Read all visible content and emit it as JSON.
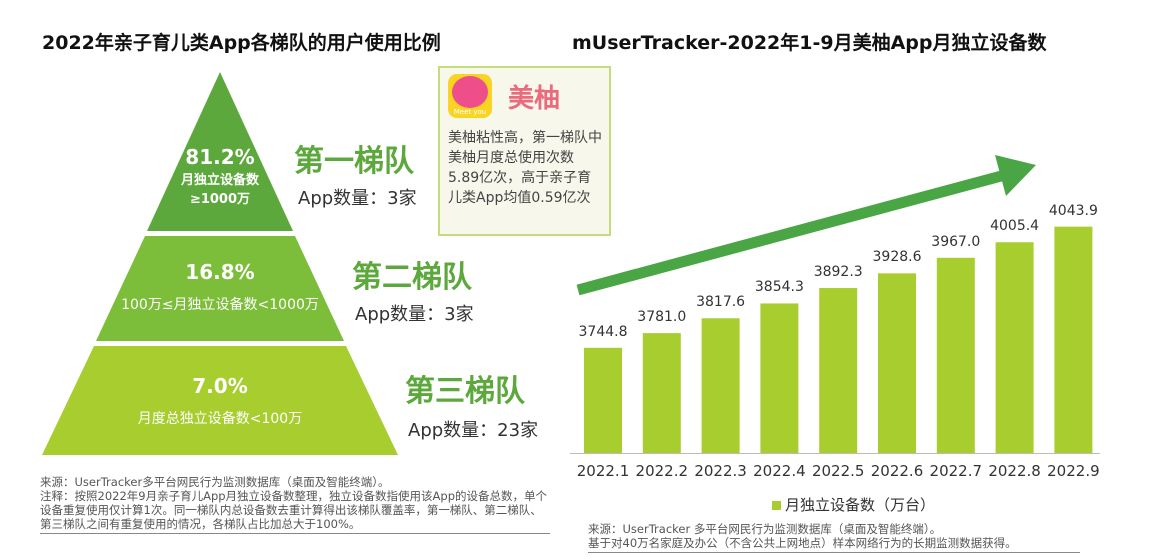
{
  "left": {
    "title": "2022年亲子育儿类App各梯队的用户使用比例",
    "tiers": [
      {
        "name": "第一梯队",
        "pct": "81.2%",
        "desc": "月独立设备数",
        "desc2": "≥1000万",
        "count": "App数量：3家",
        "color": "#5da83c"
      },
      {
        "name": "第二梯队",
        "pct": "16.8%",
        "desc": "100万≤月独立设备数<1000万",
        "count": "App数量：3家",
        "color": "#7cbd3a"
      },
      {
        "name": "第三梯队",
        "pct": "7.0%",
        "desc": "月度总独立设备数<100万",
        "count": "App数量：23家",
        "color": "#a8cd2f"
      }
    ],
    "callout": {
      "app_name": "美柚",
      "logo_text": "Meet you",
      "text": "美柚粘性高，第一梯队中美柚月度总使用次数5.89亿次，高于亲子育儿类App均值0.59亿次"
    },
    "source": [
      "来源：UserTracker多平台网民行为监测数据库（桌面及智能终端）。",
      "注释：按照2022年9月亲子育儿App月独立设备数整理，独立设备数指使用该App的设备总数，单个设备重复使用仅计算1次。同一梯队内总设备数去重计算得出该梯队覆盖率，第一梯队、第二梯队、第三梯队之间有重复使用的情况，各梯队占比加总大于100%。"
    ]
  },
  "chart_data": {
    "type": "bar",
    "title": "mUserTracker-2022年1-9月美柚App月独立设备数",
    "categories": [
      "2022.1",
      "2022.2",
      "2022.3",
      "2022.4",
      "2022.5",
      "2022.6",
      "2022.7",
      "2022.8",
      "2022.9"
    ],
    "series": [
      {
        "name": "月独立设备数（万台）",
        "values": [
          3744.8,
          3781.0,
          3817.6,
          3854.3,
          3892.3,
          3928.6,
          3967.0,
          4005.4,
          4043.9
        ],
        "labels": [
          "3744.8",
          "3781.0",
          "3817.6",
          "3854.3",
          "3892.3",
          "3928.6",
          "3967.0",
          "4005.4",
          "4043.9"
        ]
      }
    ],
    "bar_color": "#a8cd2f",
    "arrow_color": "#4aa545",
    "legend": "bottom",
    "grid": false
  },
  "right_source": [
    "来源：UserTracker 多平台网民行为监测数据库（桌面及智能终端）。",
    "基于对40万名家庭及办公（不含公共上网地点）样本网络行为的长期监测数据获得。"
  ]
}
